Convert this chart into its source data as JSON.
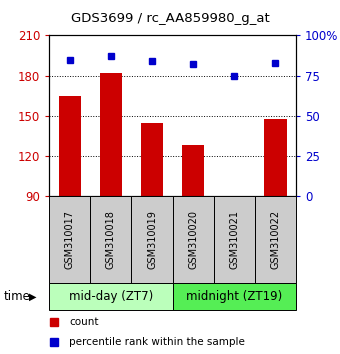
{
  "title": "GDS3699 / rc_AA859980_g_at",
  "samples": [
    "GSM310017",
    "GSM310018",
    "GSM310019",
    "GSM310020",
    "GSM310021",
    "GSM310022"
  ],
  "counts": [
    165,
    182,
    145,
    128,
    90,
    148
  ],
  "percentiles": [
    85,
    87,
    84,
    82,
    75,
    83
  ],
  "group_labels": [
    "mid-day (ZT7)",
    "midnight (ZT19)"
  ],
  "group_colors": [
    "#bbffbb",
    "#55ee55"
  ],
  "bar_color": "#cc0000",
  "dot_color": "#0000cc",
  "ylim_left": [
    90,
    210
  ],
  "ylim_right": [
    0,
    100
  ],
  "yticks_left": [
    90,
    120,
    150,
    180,
    210
  ],
  "yticks_right": [
    0,
    25,
    50,
    75,
    100
  ],
  "ytick_labels_right": [
    "0",
    "25",
    "50",
    "75",
    "100%"
  ],
  "grid_values": [
    120,
    150,
    180
  ],
  "bar_width": 0.55,
  "legend_count": "count",
  "legend_percentile": "percentile rank within the sample",
  "left_axis_color": "#cc0000",
  "right_axis_color": "#0000cc",
  "sample_box_color": "#cccccc"
}
